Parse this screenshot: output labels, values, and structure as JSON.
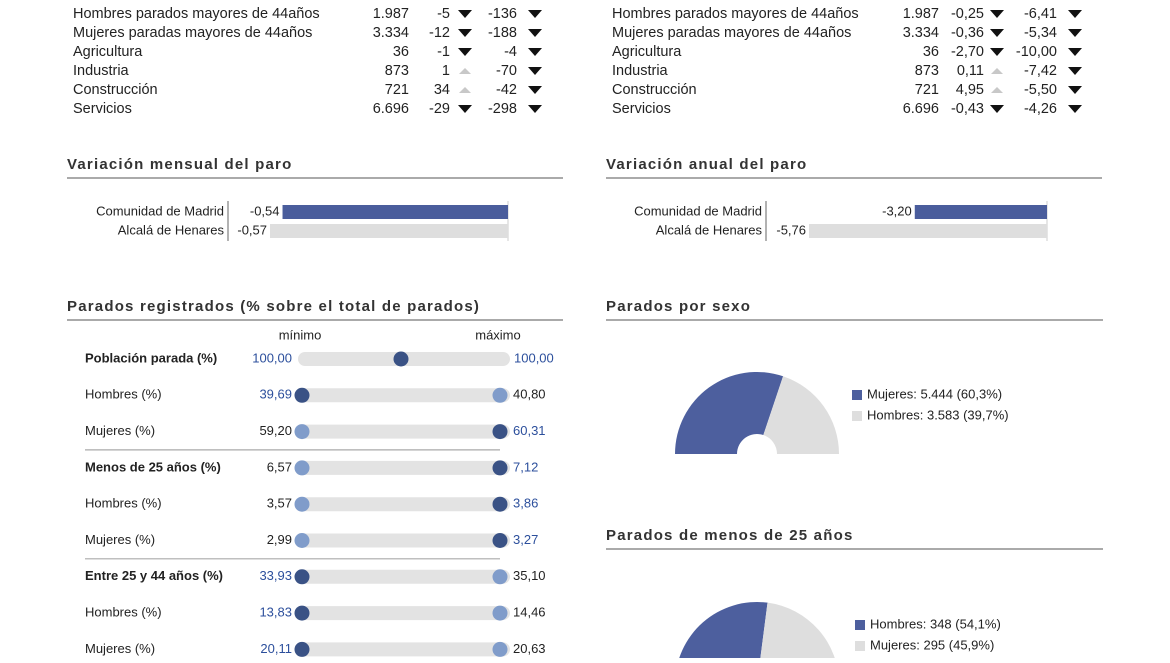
{
  "top_tables": [
    {
      "rows": [
        {
          "label": "Hombres parados mayores de 44años",
          "total": "1.987",
          "monthly": "-5",
          "annual": "-136"
        },
        {
          "label": "Mujeres paradas mayores de 44años",
          "total": "3.334",
          "monthly": "-12",
          "annual": "-188"
        },
        {
          "label": "Agricultura",
          "total": "36",
          "monthly": "-1",
          "annual": "-4"
        },
        {
          "label": "Industria",
          "total": "873",
          "monthly": "1",
          "annual": "-70"
        },
        {
          "label": "Construcción",
          "total": "721",
          "monthly": "34",
          "annual": "-42"
        },
        {
          "label": "Servicios",
          "total": "6.696",
          "monthly": "-29",
          "annual": "-298"
        }
      ]
    },
    {
      "rows": [
        {
          "label": "Hombres parados mayores de 44años",
          "total": "1.987",
          "monthly": "-0,25",
          "annual": "-6,41"
        },
        {
          "label": "Mujeres paradas mayores de 44años",
          "total": "3.334",
          "monthly": "-0,36",
          "annual": "-5,34"
        },
        {
          "label": "Agricultura",
          "total": "36",
          "monthly": "-2,70",
          "annual": "-10,00"
        },
        {
          "label": "Industria",
          "total": "873",
          "monthly": "0,11",
          "annual": "-7,42"
        },
        {
          "label": "Construcción",
          "total": "721",
          "monthly": "4,95",
          "annual": "-5,50"
        },
        {
          "label": "Servicios",
          "total": "6.696",
          "monthly": "-0,43",
          "annual": "-4,26"
        }
      ]
    }
  ],
  "bar_charts": [
    {
      "title": "Variación mensual del paro",
      "categories": [
        "Comunidad de Madrid",
        "Alcalá de Henares"
      ],
      "values": [
        -0.54,
        -0.57
      ],
      "value_labels": [
        "-0,54",
        "-0,57"
      ],
      "colors": [
        "#4a5d9c",
        "#dedede"
      ]
    },
    {
      "title": "Variación anual del paro",
      "categories": [
        "Comunidad de Madrid",
        "Alcalá de Henares"
      ],
      "values": [
        -3.2,
        -5.76
      ],
      "value_labels": [
        "-3,20",
        "-5,76"
      ],
      "colors": [
        "#4a5d9c",
        "#dedede"
      ]
    }
  ],
  "registered": {
    "title": "Parados registrados (% sobre el total de parados)",
    "min_label": "mínimo",
    "max_label": "máximo",
    "rows": [
      {
        "label": "Población parada (%)",
        "bold": true,
        "min": "100,00",
        "max": "100,00",
        "highlight": "both"
      },
      {
        "label": "Hombres (%)",
        "bold": false,
        "min": "39,69",
        "max": "40,80",
        "highlight": "min"
      },
      {
        "label": "Mujeres (%)",
        "bold": false,
        "min": "59,20",
        "max": "60,31",
        "highlight": "max"
      },
      {
        "label": "Menos de 25 años (%)",
        "bold": true,
        "min": "6,57",
        "max": "7,12",
        "highlight": "max"
      },
      {
        "label": "Hombres (%)",
        "bold": false,
        "min": "3,57",
        "max": "3,86",
        "highlight": "max"
      },
      {
        "label": "Mujeres (%)",
        "bold": false,
        "min": "2,99",
        "max": "3,27",
        "highlight": "max"
      },
      {
        "label": "Entre 25 y 44 años (%)",
        "bold": true,
        "min": "33,93",
        "max": "35,10",
        "highlight": "min"
      },
      {
        "label": "Hombres (%)",
        "bold": false,
        "min": "13,83",
        "max": "14,46",
        "highlight": "min"
      },
      {
        "label": "Mujeres (%)",
        "bold": false,
        "min": "20,11",
        "max": "20,63",
        "highlight": "min"
      }
    ]
  },
  "pies": [
    {
      "title": "Parados por sexo",
      "values": [
        60.3,
        39.7
      ],
      "legend": [
        "Mujeres: 5.444 (60,3%)",
        "Hombres: 3.583 (39,7%)"
      ],
      "colors": [
        "#4d5f9e",
        "#dedede"
      ]
    },
    {
      "title": "Parados de menos de 25 años",
      "values": [
        54.1,
        45.9
      ],
      "legend": [
        "Hombres: 348 (54,1%)",
        "Mujeres: 295 (45,9%)"
      ],
      "colors": [
        "#4d5f9e",
        "#dedede"
      ]
    }
  ]
}
